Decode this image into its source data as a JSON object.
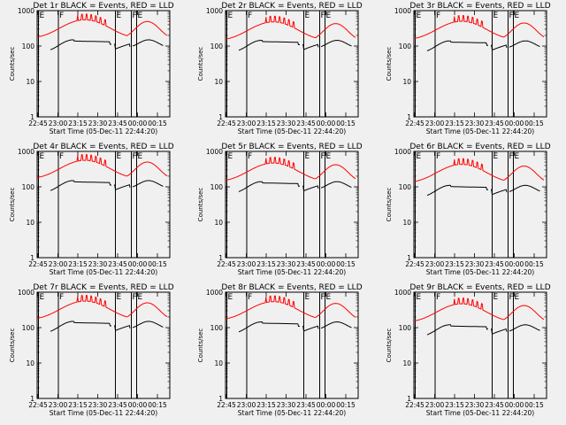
{
  "figure": {
    "y_label": "Counts/sec",
    "x_label": "Start Time (05-Dec-11 22:44:20)",
    "x_ticks": [
      "22:45",
      "23:00",
      "23:15",
      "23:30",
      "23:45",
      "00:00",
      "00:15"
    ],
    "y_ticks": [
      "1",
      "10",
      "100",
      "1000"
    ],
    "series_colors": {
      "events": "#000000",
      "lld": "#ff0000"
    }
  },
  "chart_data": [
    {
      "type": "line",
      "title": "Det 1r BLACK = Events, RED = LLD",
      "xlabel": "Start Time (05-Dec-11 22:44:20)",
      "ylabel": "Counts/sec",
      "ylim": [
        1,
        1000
      ],
      "y_scale": "log",
      "x_units": "minutes since 22:44:20",
      "xlim": [
        0,
        100
      ],
      "markers": [
        {
          "x": 1,
          "label": "E"
        },
        {
          "x": 16,
          "label": "F"
        },
        {
          "x": 59,
          "label": "E"
        },
        {
          "x": 71,
          "label": "F"
        },
        {
          "x": 75,
          "label": "E"
        }
      ],
      "lld_peak": 550,
      "events_peak": 150
    },
    {
      "type": "line",
      "title": "Det 2r BLACK = Events, RED = LLD",
      "xlabel": "Start Time (05-Dec-11 22:44:20)",
      "ylabel": "Counts/sec",
      "ylim": [
        1,
        1000
      ],
      "y_scale": "log",
      "x_units": "minutes since 22:44:20",
      "xlim": [
        0,
        100
      ],
      "markers": [
        {
          "x": 1,
          "label": "E"
        },
        {
          "x": 16,
          "label": "F"
        },
        {
          "x": 59,
          "label": "E"
        },
        {
          "x": 71,
          "label": "F"
        },
        {
          "x": 75,
          "label": "E"
        }
      ],
      "lld_peak": 480,
      "events_peak": 145
    },
    {
      "type": "line",
      "title": "Det 3r BLACK = Events, RED = LLD",
      "xlabel": "Start Time (05-Dec-11 22:44:20)",
      "ylabel": "Counts/sec",
      "ylim": [
        1,
        1000
      ],
      "y_scale": "log",
      "x_units": "minutes since 22:44:20",
      "xlim": [
        0,
        100
      ],
      "markers": [
        {
          "x": 1,
          "label": "E"
        },
        {
          "x": 16,
          "label": "F"
        },
        {
          "x": 59,
          "label": "E"
        },
        {
          "x": 71,
          "label": "F"
        },
        {
          "x": 75,
          "label": "E"
        }
      ],
      "lld_peak": 500,
      "events_peak": 140
    },
    {
      "type": "line",
      "title": "Det 4r BLACK = Events, RED = LLD",
      "xlabel": "Start Time (05-Dec-11 22:44:20)",
      "ylabel": "Counts/sec",
      "ylim": [
        1,
        1000
      ],
      "y_scale": "log",
      "x_units": "minutes since 22:44:20",
      "xlim": [
        0,
        100
      ],
      "markers": [
        {
          "x": 1,
          "label": "E"
        },
        {
          "x": 16,
          "label": "F"
        },
        {
          "x": 59,
          "label": "E"
        },
        {
          "x": 71,
          "label": "F"
        },
        {
          "x": 75,
          "label": "E"
        }
      ],
      "lld_peak": 560,
      "events_peak": 150
    },
    {
      "type": "line",
      "title": "Det 5r BLACK = Events, RED = LLD",
      "xlabel": "Start Time (05-Dec-11 22:44:20)",
      "ylabel": "Counts/sec",
      "ylim": [
        1,
        1000
      ],
      "y_scale": "log",
      "x_units": "minutes since 22:44:20",
      "xlim": [
        0,
        100
      ],
      "markers": [
        {
          "x": 1,
          "label": "E"
        },
        {
          "x": 16,
          "label": "F"
        },
        {
          "x": 59,
          "label": "E"
        },
        {
          "x": 71,
          "label": "F"
        },
        {
          "x": 75,
          "label": "E"
        }
      ],
      "lld_peak": 470,
      "events_peak": 140
    },
    {
      "type": "line",
      "title": "Det 6r BLACK = Events, RED = LLD",
      "xlabel": "Start Time (05-Dec-11 22:44:20)",
      "ylabel": "Counts/sec",
      "ylim": [
        1,
        1000
      ],
      "y_scale": "log",
      "x_units": "minutes since 22:44:20",
      "xlim": [
        0,
        100
      ],
      "markers": [
        {
          "x": 1,
          "label": "E"
        },
        {
          "x": 16,
          "label": "F"
        },
        {
          "x": 59,
          "label": "E"
        },
        {
          "x": 71,
          "label": "F"
        },
        {
          "x": 75,
          "label": "E"
        }
      ],
      "lld_peak": 430,
      "events_peak": 110
    },
    {
      "type": "line",
      "title": "Det 7r BLACK = Events, RED = LLD",
      "xlabel": "Start Time (05-Dec-11 22:44:20)",
      "ylabel": "Counts/sec",
      "ylim": [
        1,
        1000
      ],
      "y_scale": "log",
      "x_units": "minutes since 22:44:20",
      "xlim": [
        0,
        100
      ],
      "markers": [
        {
          "x": 1,
          "label": "E"
        },
        {
          "x": 16,
          "label": "F"
        },
        {
          "x": 59,
          "label": "E"
        },
        {
          "x": 71,
          "label": "F"
        },
        {
          "x": 75,
          "label": "E"
        }
      ],
      "lld_peak": 560,
      "events_peak": 150
    },
    {
      "type": "line",
      "title": "Det 8r BLACK = Events, RED = LLD",
      "xlabel": "Start Time (05-Dec-11 22:44:20)",
      "ylabel": "Counts/sec",
      "ylim": [
        1,
        1000
      ],
      "y_scale": "log",
      "x_units": "minutes since 22:44:20",
      "xlim": [
        0,
        100
      ],
      "markers": [
        {
          "x": 1,
          "label": "E"
        },
        {
          "x": 16,
          "label": "F"
        },
        {
          "x": 59,
          "label": "E"
        },
        {
          "x": 71,
          "label": "F"
        },
        {
          "x": 75,
          "label": "E"
        }
      ],
      "lld_peak": 540,
      "events_peak": 145
    },
    {
      "type": "line",
      "title": "Det 9r BLACK = Events, RED = LLD",
      "xlabel": "Start Time (05-Dec-11 22:44:20)",
      "ylabel": "Counts/sec",
      "ylim": [
        1,
        1000
      ],
      "y_scale": "log",
      "x_units": "minutes since 22:44:20",
      "xlim": [
        0,
        100
      ],
      "markers": [
        {
          "x": 1,
          "label": "E"
        },
        {
          "x": 16,
          "label": "F"
        },
        {
          "x": 59,
          "label": "E"
        },
        {
          "x": 71,
          "label": "F"
        },
        {
          "x": 75,
          "label": "E"
        }
      ],
      "lld_peak": 470,
      "events_peak": 120
    }
  ]
}
